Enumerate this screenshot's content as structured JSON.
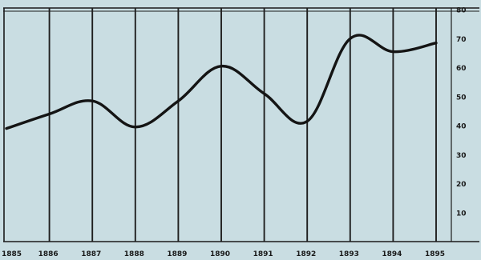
{
  "chart_data": {
    "type": "line",
    "x": [
      "1885",
      "1886",
      "1887",
      "1888",
      "1889",
      "1890",
      "1891",
      "1892",
      "1893",
      "1894",
      "1895"
    ],
    "series": [
      {
        "values": [
          39,
          44,
          48.5,
          39.5,
          48.5,
          60.5,
          51,
          41.5,
          70,
          65.5,
          68.5
        ]
      }
    ],
    "yticks": [
      "10",
      "20",
      "30",
      "40",
      "50",
      "60",
      "70",
      "80"
    ],
    "ylim": [
      0,
      80
    ],
    "grid": true,
    "colors": {
      "background": "#c9dde2",
      "ink": "#141414"
    }
  }
}
